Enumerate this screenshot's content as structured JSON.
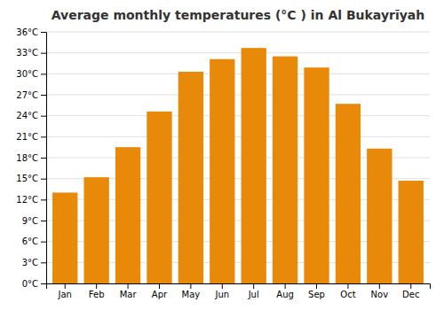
{
  "chart_data": {
    "type": "bar",
    "title": "Average monthly temperatures (°C ) in Al Bukayrīyah",
    "categories": [
      "Jan",
      "Feb",
      "Mar",
      "Apr",
      "May",
      "Jun",
      "Jul",
      "Aug",
      "Sep",
      "Oct",
      "Nov",
      "Dec"
    ],
    "values": [
      13.0,
      15.2,
      19.5,
      24.6,
      30.3,
      32.1,
      33.7,
      32.5,
      30.9,
      25.7,
      19.3,
      14.7
    ],
    "color": "#E8890A",
    "ylim": [
      0,
      36
    ],
    "yticks": [
      {
        "value": 0,
        "label": "0°C"
      },
      {
        "value": 3,
        "label": "3°C"
      },
      {
        "value": 6,
        "label": "6°C"
      },
      {
        "value": 9,
        "label": "9°C"
      },
      {
        "value": 12,
        "label": "12°C"
      },
      {
        "value": 15,
        "label": "15°C"
      },
      {
        "value": 18,
        "label": "18°C"
      },
      {
        "value": 21,
        "label": "21°C"
      },
      {
        "value": 24,
        "label": "24°C"
      },
      {
        "value": 27,
        "label": "27°C"
      },
      {
        "value": 30,
        "label": "30°C"
      },
      {
        "value": 33,
        "label": "33°C"
      },
      {
        "value": 36,
        "label": "36°C"
      }
    ],
    "grid": true
  }
}
